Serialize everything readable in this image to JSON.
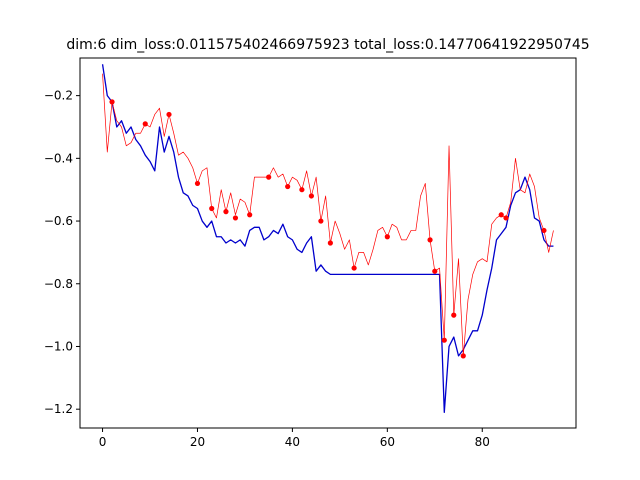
{
  "chart_data": {
    "type": "line",
    "title": "dim:6 dim_loss:0.011575402466975923 total_loss:0.14770641922950745",
    "xlabel": "",
    "ylabel": "",
    "xlim": [
      -4.75,
      99.75
    ],
    "ylim": [
      -1.26,
      -0.08
    ],
    "xticks": [
      0,
      20,
      40,
      60,
      80
    ],
    "yticks": [
      -1.2,
      -1.0,
      -0.8,
      -0.6,
      -0.4,
      -0.2
    ],
    "grid": false,
    "series": [
      {
        "color": "#0000cc",
        "x": [
          0,
          1,
          2,
          3,
          4,
          5,
          6,
          7,
          8,
          9,
          10,
          11,
          12,
          13,
          14,
          15,
          16,
          17,
          18,
          19,
          20,
          21,
          22,
          23,
          24,
          25,
          26,
          27,
          28,
          29,
          30,
          31,
          32,
          33,
          34,
          35,
          36,
          37,
          38,
          39,
          40,
          41,
          42,
          43,
          44,
          45,
          46,
          47,
          48,
          49,
          50,
          51,
          52,
          53,
          54,
          55,
          56,
          57,
          58,
          59,
          60,
          61,
          62,
          63,
          64,
          65,
          66,
          67,
          68,
          69,
          70,
          71,
          72,
          73,
          74,
          75,
          76,
          77,
          78,
          79,
          80,
          81,
          82,
          83,
          84,
          85,
          86,
          87,
          88,
          89,
          90,
          91,
          92,
          93,
          94,
          95
        ],
        "y": [
          -0.1,
          -0.2,
          -0.22,
          -0.3,
          -0.28,
          -0.32,
          -0.3,
          -0.34,
          -0.36,
          -0.39,
          -0.41,
          -0.44,
          -0.3,
          -0.38,
          -0.33,
          -0.38,
          -0.46,
          -0.51,
          -0.52,
          -0.55,
          -0.56,
          -0.6,
          -0.62,
          -0.6,
          -0.65,
          -0.65,
          -0.67,
          -0.66,
          -0.67,
          -0.66,
          -0.68,
          -0.63,
          -0.62,
          -0.62,
          -0.66,
          -0.65,
          -0.63,
          -0.64,
          -0.61,
          -0.65,
          -0.66,
          -0.69,
          -0.7,
          -0.67,
          -0.65,
          -0.76,
          -0.74,
          -0.76,
          -0.77,
          -0.77,
          -0.77,
          -0.77,
          -0.77,
          -0.77,
          -0.77,
          -0.77,
          -0.77,
          -0.77,
          -0.77,
          -0.77,
          -0.77,
          -0.77,
          -0.77,
          -0.77,
          -0.77,
          -0.77,
          -0.77,
          -0.77,
          -0.77,
          -0.77,
          -0.77,
          -0.77,
          -1.21,
          -1.0,
          -0.97,
          -1.03,
          -1.01,
          -0.98,
          -0.95,
          -0.95,
          -0.9,
          -0.82,
          -0.75,
          -0.66,
          -0.64,
          -0.62,
          -0.55,
          -0.51,
          -0.5,
          -0.46,
          -0.5,
          -0.59,
          -0.6,
          -0.66,
          -0.68,
          -0.68
        ]
      },
      {
        "color": "#ff0000",
        "x": [
          0,
          1,
          2,
          3,
          4,
          5,
          6,
          7,
          8,
          9,
          10,
          11,
          12,
          13,
          14,
          15,
          16,
          17,
          18,
          19,
          20,
          21,
          22,
          23,
          24,
          25,
          26,
          27,
          28,
          29,
          30,
          31,
          32,
          33,
          34,
          35,
          36,
          37,
          38,
          39,
          40,
          41,
          42,
          43,
          44,
          45,
          46,
          47,
          48,
          49,
          50,
          51,
          52,
          53,
          54,
          55,
          56,
          57,
          58,
          59,
          60,
          61,
          62,
          63,
          64,
          65,
          66,
          67,
          68,
          69,
          70,
          71,
          72,
          73,
          74,
          75,
          76,
          77,
          78,
          79,
          80,
          81,
          82,
          83,
          84,
          85,
          86,
          87,
          88,
          89,
          90,
          91,
          92,
          93,
          94,
          95
        ],
        "y": [
          -0.13,
          -0.38,
          -0.22,
          -0.28,
          -0.3,
          -0.36,
          -0.35,
          -0.32,
          -0.32,
          -0.29,
          -0.3,
          -0.26,
          -0.24,
          -0.33,
          -0.26,
          -0.32,
          -0.39,
          -0.38,
          -0.4,
          -0.43,
          -0.48,
          -0.44,
          -0.43,
          -0.56,
          -0.59,
          -0.5,
          -0.57,
          -0.51,
          -0.58,
          -0.53,
          -0.54,
          -0.58,
          -0.46,
          -0.46,
          -0.46,
          -0.46,
          -0.43,
          -0.46,
          -0.45,
          -0.49,
          -0.46,
          -0.47,
          -0.5,
          -0.44,
          -0.52,
          -0.46,
          -0.6,
          -0.52,
          -0.67,
          -0.6,
          -0.64,
          -0.69,
          -0.66,
          -0.75,
          -0.7,
          -0.7,
          -0.74,
          -0.69,
          -0.63,
          -0.62,
          -0.65,
          -0.61,
          -0.62,
          -0.66,
          -0.66,
          -0.63,
          -0.63,
          -0.52,
          -0.48,
          -0.66,
          -0.76,
          -0.75,
          -0.98,
          -0.36,
          -0.9,
          -0.72,
          -1.03,
          -0.85,
          -0.77,
          -0.73,
          -0.72,
          -0.73,
          -0.61,
          -0.59,
          -0.58,
          -0.59,
          -0.54,
          -0.4,
          -0.5,
          -0.51,
          -0.45,
          -0.49,
          -0.59,
          -0.63,
          -0.7,
          -0.63
        ]
      },
      {
        "color": "#ff0000",
        "markers_only": true,
        "x": [
          2,
          9,
          14,
          20,
          23,
          26,
          28,
          31,
          35,
          39,
          42,
          44,
          46,
          48,
          53,
          60,
          69,
          70,
          72,
          74,
          76,
          84,
          85,
          93
        ],
        "y": [
          -0.22,
          -0.29,
          -0.26,
          -0.48,
          -0.56,
          -0.57,
          -0.59,
          -0.58,
          -0.46,
          -0.49,
          -0.5,
          -0.52,
          -0.6,
          -0.67,
          -0.75,
          -0.65,
          -0.66,
          -0.76,
          -0.98,
          -0.9,
          -1.03,
          -0.58,
          -0.59,
          -0.63
        ]
      }
    ]
  }
}
